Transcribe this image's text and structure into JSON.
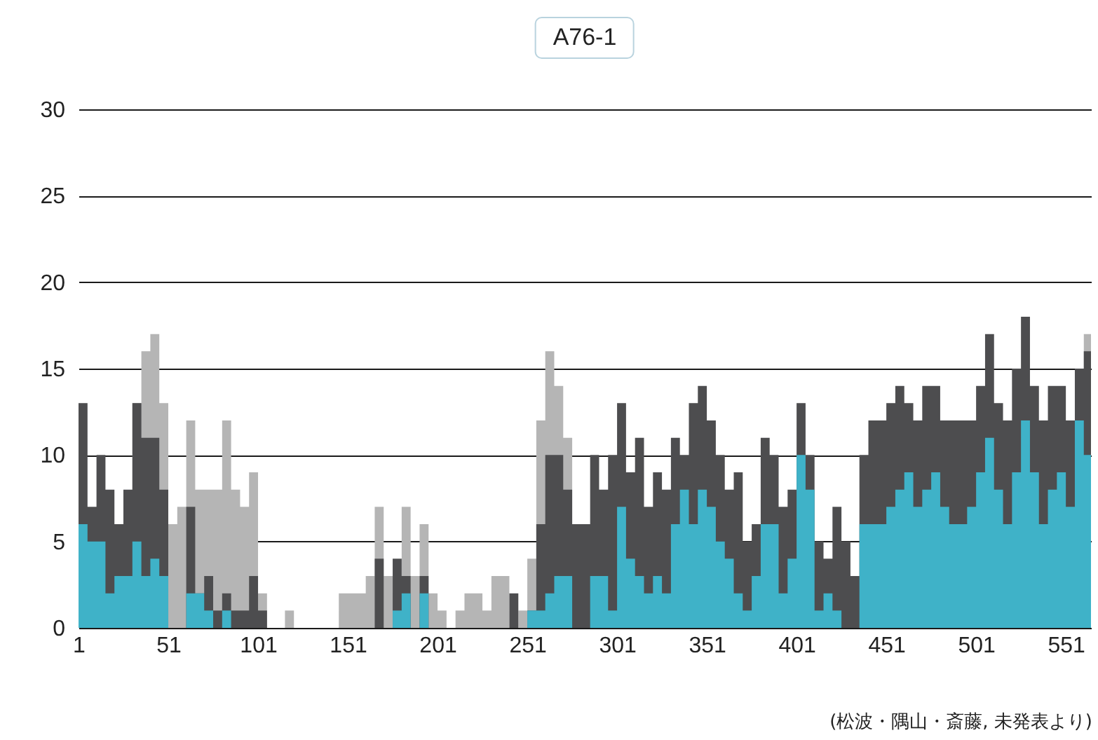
{
  "chart_data": {
    "type": "area",
    "title": "A76-1",
    "annotations": [
      "(松波・隅山・斎藤, 未発表より)"
    ],
    "x": [
      1,
      6,
      11,
      16,
      21,
      26,
      31,
      36,
      41,
      46,
      51,
      56,
      61,
      66,
      71,
      76,
      81,
      86,
      91,
      96,
      101,
      106,
      111,
      116,
      121,
      126,
      131,
      136,
      141,
      146,
      151,
      156,
      161,
      166,
      171,
      176,
      181,
      186,
      191,
      196,
      201,
      206,
      211,
      216,
      221,
      226,
      231,
      236,
      241,
      246,
      251,
      256,
      261,
      266,
      271,
      276,
      281,
      286,
      291,
      296,
      301,
      306,
      311,
      316,
      321,
      326,
      331,
      336,
      341,
      346,
      351,
      356,
      361,
      366,
      371,
      376,
      381,
      386,
      391,
      396,
      401,
      406,
      411,
      416,
      421,
      426,
      431,
      436,
      441,
      446,
      451,
      456,
      461,
      466,
      471,
      476,
      481,
      486,
      491,
      496,
      501,
      506,
      511,
      516,
      521,
      526,
      531,
      536,
      541,
      546,
      551,
      556,
      561,
      565
    ],
    "series": [
      {
        "color": "#b5b5b5",
        "values": [
          null,
          null,
          null,
          null,
          null,
          null,
          13,
          16,
          17,
          13,
          6,
          7,
          12,
          8,
          8,
          8,
          12,
          8,
          7,
          9,
          2,
          0,
          0,
          1,
          0,
          0,
          0,
          0,
          0,
          2,
          2,
          2,
          3,
          7,
          3,
          2,
          7,
          3,
          6,
          2,
          1,
          0,
          1,
          2,
          2,
          1,
          3,
          3,
          0,
          1,
          4,
          12,
          16,
          14,
          11,
          6,
          null,
          null,
          null,
          null,
          null,
          null,
          null,
          null,
          null,
          null,
          null,
          null,
          null,
          null,
          null,
          null,
          null,
          null,
          null,
          null,
          null,
          null,
          null,
          null,
          null,
          null,
          null,
          null,
          null,
          null,
          null,
          null,
          null,
          null,
          null,
          null,
          null,
          null,
          null,
          null,
          null,
          null,
          null,
          null,
          null,
          null,
          null,
          null,
          null,
          null,
          null,
          null,
          null,
          null,
          null,
          null,
          17,
          17
        ]
      },
      {
        "color": "#4d4d4f",
        "values": [
          13,
          7,
          10,
          8,
          6,
          8,
          13,
          11,
          11,
          8,
          0,
          0,
          7,
          2,
          3,
          1,
          2,
          1,
          1,
          3,
          1,
          0,
          0,
          0,
          0,
          0,
          0,
          0,
          0,
          0,
          0,
          0,
          0,
          4,
          0,
          4,
          3,
          0,
          3,
          0,
          0,
          0,
          0,
          0,
          0,
          0,
          0,
          0,
          2,
          0,
          1,
          6,
          10,
          10,
          8,
          6,
          6,
          10,
          8,
          10,
          13,
          9,
          11,
          7,
          9,
          8,
          11,
          10,
          13,
          14,
          12,
          10,
          8,
          9,
          5,
          6,
          11,
          10,
          7,
          8,
          13,
          10,
          5,
          4,
          7,
          5,
          3,
          10,
          12,
          12,
          13,
          14,
          13,
          12,
          14,
          14,
          12,
          12,
          12,
          12,
          14,
          17,
          13,
          12,
          15,
          18,
          14,
          12,
          14,
          14,
          12,
          15,
          16,
          12
        ]
      },
      {
        "color": "#3fb2c8",
        "values": [
          6,
          5,
          5,
          2,
          3,
          3,
          5,
          3,
          4,
          3,
          0,
          0,
          2,
          2,
          1,
          0,
          1,
          0,
          0,
          0,
          0,
          0,
          0,
          0,
          0,
          0,
          0,
          0,
          0,
          0,
          0,
          0,
          0,
          0,
          0,
          1,
          2,
          0,
          2,
          0,
          0,
          0,
          0,
          0,
          0,
          0,
          0,
          0,
          0,
          0,
          1,
          1,
          2,
          3,
          3,
          0,
          0,
          3,
          3,
          1,
          7,
          4,
          3,
          2,
          3,
          2,
          6,
          8,
          6,
          8,
          7,
          5,
          4,
          2,
          1,
          3,
          6,
          6,
          2,
          4,
          10,
          8,
          1,
          2,
          1,
          0,
          0,
          6,
          6,
          6,
          7,
          8,
          9,
          7,
          8,
          9,
          7,
          6,
          6,
          7,
          9,
          11,
          8,
          6,
          9,
          12,
          9,
          6,
          8,
          9,
          7,
          12,
          10,
          8
        ]
      }
    ],
    "xlim": [
      1,
      565
    ],
    "xticks": [
      1,
      51,
      101,
      151,
      201,
      251,
      301,
      351,
      401,
      451,
      501,
      551
    ],
    "ylim": [
      0,
      30
    ],
    "yticks": [
      0,
      5,
      10,
      15,
      20,
      25,
      30
    ],
    "grid": "y"
  }
}
